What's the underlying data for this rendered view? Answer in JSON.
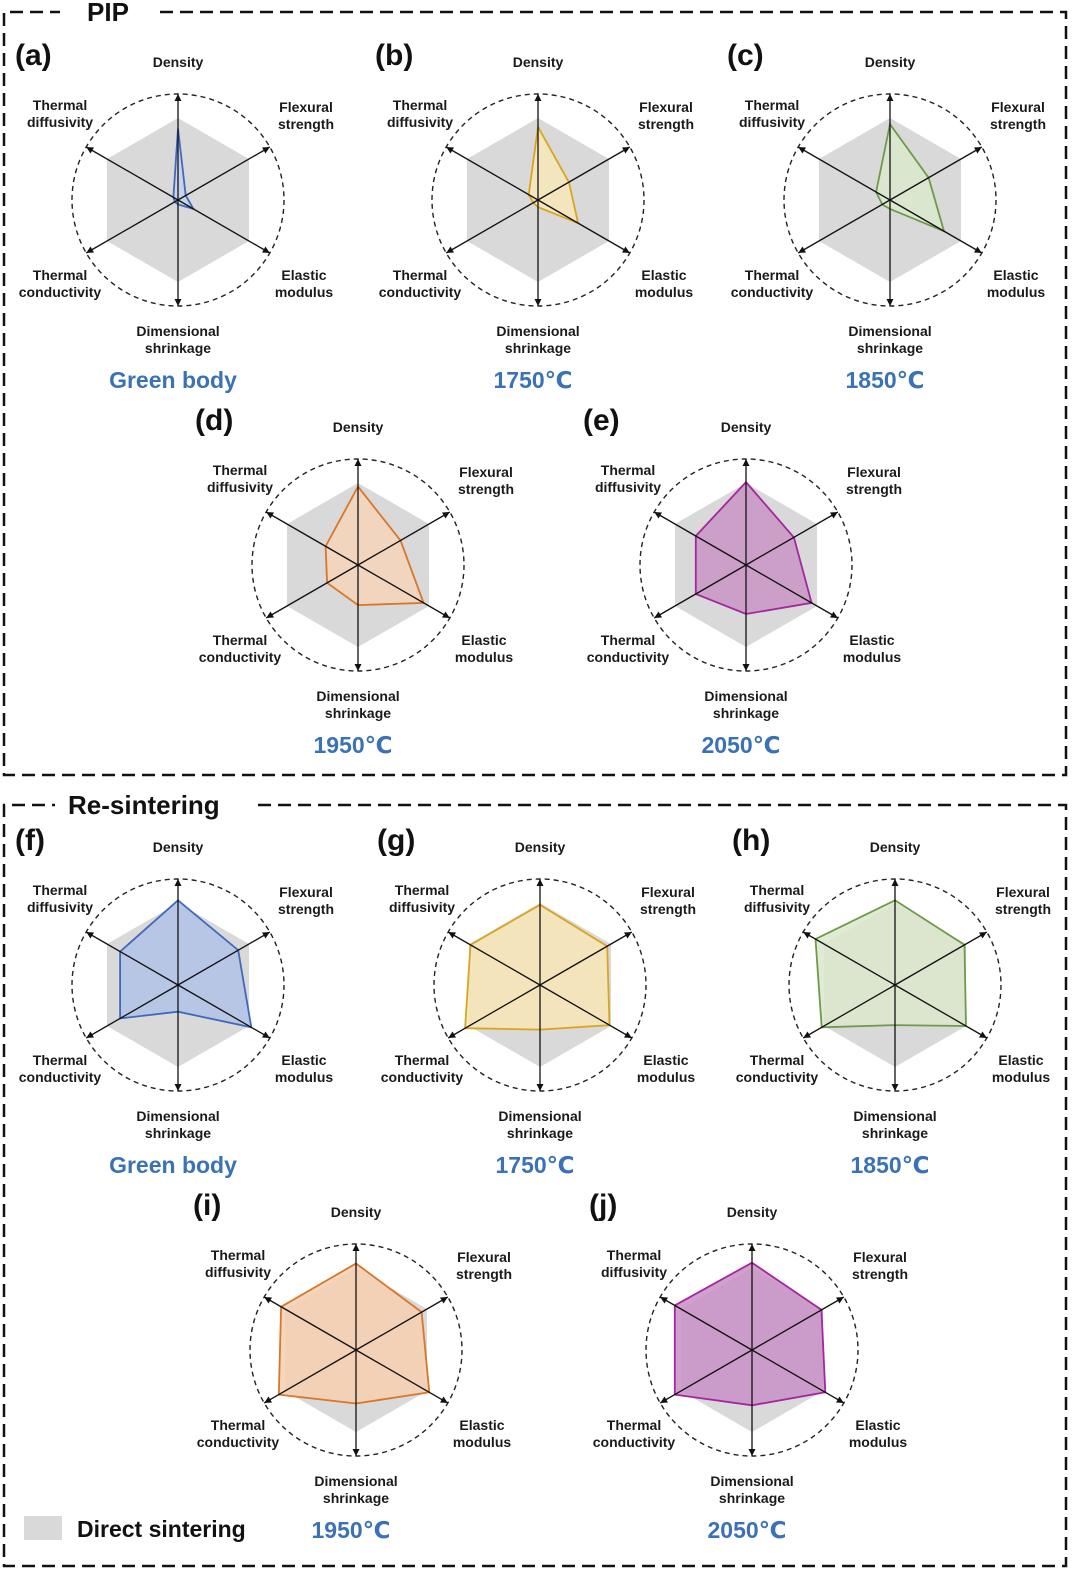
{
  "sections": [
    {
      "title": "PIP"
    },
    {
      "title": "Re-sintering"
    }
  ],
  "legend": {
    "label": "Direct sintering",
    "color": "#d9d9d9"
  },
  "chart_data": [
    {
      "type": "radar",
      "panel": "(a)",
      "section": "PIP",
      "title": "Green body",
      "color": "#4169b9",
      "fill": "#c5d1ee",
      "axes": [
        "Density",
        "Flexural strength",
        "Elastic modulus",
        "Dimensional shrinkage",
        "Thermal conductivity",
        "Thermal diffusivity"
      ],
      "values": [
        0.8,
        0.1,
        0.2,
        0.05,
        0.04,
        0.06
      ],
      "reference_direct_sintering": [
        0.92,
        0.92,
        0.92,
        0.92,
        0.92,
        0.92
      ],
      "range": [
        0,
        1
      ]
    },
    {
      "type": "radar",
      "panel": "(b)",
      "section": "PIP",
      "title": "1750℃",
      "color": "#d9a521",
      "fill": "#f7e6b8",
      "axes": [
        "Density",
        "Flexural strength",
        "Elastic modulus",
        "Dimensional shrinkage",
        "Thermal conductivity",
        "Thermal diffusivity"
      ],
      "values": [
        0.82,
        0.4,
        0.52,
        0.08,
        0.06,
        0.12
      ],
      "reference_direct_sintering": [
        0.92,
        0.92,
        0.92,
        0.92,
        0.92,
        0.92
      ],
      "range": [
        0,
        1
      ]
    },
    {
      "type": "radar",
      "panel": "(c)",
      "section": "PIP",
      "title": "1850℃",
      "color": "#6f9a4c",
      "fill": "#dbe7cc",
      "axes": [
        "Density",
        "Flexural strength",
        "Elastic modulus",
        "Dimensional shrinkage",
        "Thermal conductivity",
        "Thermal diffusivity"
      ],
      "values": [
        0.85,
        0.5,
        0.7,
        0.1,
        0.1,
        0.18
      ],
      "reference_direct_sintering": [
        0.92,
        0.92,
        0.92,
        0.92,
        0.92,
        0.92
      ],
      "range": [
        0,
        1
      ]
    },
    {
      "type": "radar",
      "panel": "(d)",
      "section": "PIP",
      "title": "1950℃",
      "color": "#d7772a",
      "fill": "#f6d3b9",
      "axes": [
        "Density",
        "Flexural strength",
        "Elastic modulus",
        "Dimensional shrinkage",
        "Thermal conductivity",
        "Thermal diffusivity"
      ],
      "values": [
        0.88,
        0.55,
        0.85,
        0.45,
        0.4,
        0.42
      ],
      "reference_direct_sintering": [
        0.92,
        0.92,
        0.92,
        0.92,
        0.92,
        0.92
      ],
      "range": [
        0,
        1
      ]
    },
    {
      "type": "radar",
      "panel": "(e)",
      "section": "PIP",
      "title": "2050℃",
      "color": "#a3279e",
      "fill": "#c994c6",
      "axes": [
        "Density",
        "Flexural strength",
        "Elastic modulus",
        "Dimensional shrinkage",
        "Thermal conductivity",
        "Thermal diffusivity"
      ],
      "values": [
        0.93,
        0.62,
        0.85,
        0.55,
        0.65,
        0.65
      ],
      "reference_direct_sintering": [
        0.92,
        0.92,
        0.92,
        0.92,
        0.92,
        0.92
      ],
      "range": [
        0,
        1
      ]
    },
    {
      "type": "radar",
      "panel": "(f)",
      "section": "Re-sintering",
      "title": "Green body",
      "color": "#4169b9",
      "fill": "#b1c2e8",
      "axes": [
        "Density",
        "Flexural strength",
        "Elastic modulus",
        "Dimensional shrinkage",
        "Thermal conductivity",
        "Thermal diffusivity"
      ],
      "values": [
        0.95,
        0.78,
        0.95,
        0.3,
        0.75,
        0.75
      ],
      "reference_direct_sintering": [
        0.92,
        0.92,
        0.92,
        0.92,
        0.92,
        0.92
      ],
      "range": [
        0,
        1
      ]
    },
    {
      "type": "radar",
      "panel": "(g)",
      "section": "Re-sintering",
      "title": "1750℃",
      "color": "#d9a521",
      "fill": "#f7e5b5",
      "axes": [
        "Density",
        "Flexural strength",
        "Elastic modulus",
        "Dimensional shrinkage",
        "Thermal conductivity",
        "Thermal diffusivity"
      ],
      "values": [
        0.9,
        0.87,
        0.9,
        0.5,
        0.97,
        0.9
      ],
      "reference_direct_sintering": [
        0.92,
        0.92,
        0.92,
        0.92,
        0.92,
        0.92
      ],
      "range": [
        0,
        1
      ]
    },
    {
      "type": "radar",
      "panel": "(h)",
      "section": "Re-sintering",
      "title": "1850℃",
      "color": "#6f9a4c",
      "fill": "#dce8cd",
      "axes": [
        "Density",
        "Flexural strength",
        "Elastic modulus",
        "Dimensional shrinkage",
        "Thermal conductivity",
        "Thermal diffusivity"
      ],
      "values": [
        0.95,
        0.9,
        0.92,
        0.45,
        0.95,
        1.03
      ],
      "reference_direct_sintering": [
        0.92,
        0.92,
        0.92,
        0.92,
        0.92,
        0.92
      ],
      "range": [
        0,
        1
      ]
    },
    {
      "type": "radar",
      "panel": "(i)",
      "section": "Re-sintering",
      "title": "1950℃",
      "color": "#d7772a",
      "fill": "#f6cfb0",
      "axes": [
        "Density",
        "Flexural strength",
        "Elastic modulus",
        "Dimensional shrinkage",
        "Thermal conductivity",
        "Thermal diffusivity"
      ],
      "values": [
        0.97,
        0.85,
        0.95,
        0.6,
        1.0,
        0.97
      ],
      "reference_direct_sintering": [
        0.92,
        0.92,
        0.92,
        0.92,
        0.92,
        0.92
      ],
      "range": [
        0,
        1
      ]
    },
    {
      "type": "radar",
      "panel": "(j)",
      "section": "Re-sintering",
      "title": "2050℃",
      "color": "#a3279e",
      "fill": "#c890c6",
      "axes": [
        "Density",
        "Flexural strength",
        "Elastic modulus",
        "Dimensional shrinkage",
        "Thermal conductivity",
        "Thermal diffusivity"
      ],
      "values": [
        0.98,
        0.9,
        0.95,
        0.62,
        1.0,
        1.0
      ],
      "reference_direct_sintering": [
        0.92,
        0.92,
        0.92,
        0.92,
        0.92,
        0.92
      ],
      "range": [
        0,
        1
      ]
    }
  ]
}
